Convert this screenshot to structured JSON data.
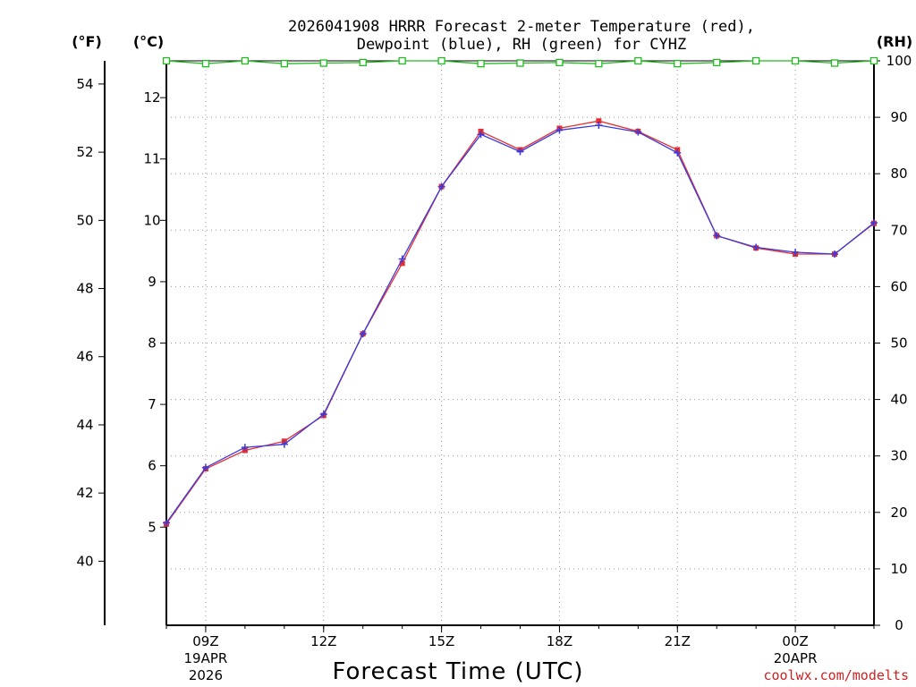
{
  "chart_data": {
    "type": "line",
    "title_line1": "2026041908 HRRR Forecast 2-meter Temperature (red),",
    "title_line2": "Dewpoint (blue), RH (green) for CYHZ",
    "xlabel": "Forecast Time (UTC)",
    "unit_left_f": "(°F)",
    "unit_left_c": "(°C)",
    "unit_right_rh": "(RH)",
    "watermark": "coolwx.com/modelts",
    "grid": true,
    "x_hours": [
      8,
      9,
      10,
      11,
      12,
      13,
      14,
      15,
      16,
      17,
      18,
      19,
      20,
      21,
      22,
      23,
      24,
      25,
      26
    ],
    "xlim": [
      8,
      26
    ],
    "x_ticks": [
      {
        "hour": 9,
        "lines": [
          "09Z",
          "19APR",
          "2026"
        ]
      },
      {
        "hour": 12,
        "lines": [
          "12Z"
        ]
      },
      {
        "hour": 15,
        "lines": [
          "15Z"
        ]
      },
      {
        "hour": 18,
        "lines": [
          "18Z"
        ]
      },
      {
        "hour": 21,
        "lines": [
          "21Z"
        ]
      },
      {
        "hour": 24,
        "lines": [
          "00Z",
          "20APR"
        ]
      }
    ],
    "celsius_axis": {
      "range": [
        3.4,
        12.6
      ],
      "ticks": [
        5,
        6,
        7,
        8,
        9,
        10,
        11,
        12
      ]
    },
    "fahrenheit_axis": {
      "ticks": [
        40,
        42,
        44,
        46,
        48,
        50,
        52,
        54
      ]
    },
    "rh_axis": {
      "range": [
        0,
        100
      ],
      "ticks": [
        0,
        10,
        20,
        30,
        40,
        50,
        60,
        70,
        80,
        90,
        100
      ]
    },
    "series": [
      {
        "name": "Temperature",
        "axis": "celsius",
        "color": "#e53030",
        "marker": "square",
        "values": [
          5.05,
          5.95,
          6.25,
          6.4,
          6.82,
          8.15,
          9.3,
          10.55,
          11.45,
          11.15,
          11.5,
          11.62,
          11.45,
          11.15,
          9.75,
          9.55,
          9.45,
          9.45,
          9.95
        ]
      },
      {
        "name": "Dewpoint",
        "axis": "celsius",
        "color": "#3a3adf",
        "marker": "plus",
        "values": [
          5.07,
          5.97,
          6.3,
          6.35,
          6.84,
          8.15,
          9.37,
          10.55,
          11.4,
          11.12,
          11.47,
          11.55,
          11.44,
          11.1,
          9.75,
          9.56,
          9.48,
          9.45,
          9.96
        ]
      },
      {
        "name": "RH",
        "axis": "rh",
        "color": "#22bb22",
        "marker": "open-square",
        "values": [
          100,
          99.5,
          100,
          99.5,
          99.6,
          99.7,
          100,
          100,
          99.5,
          99.6,
          99.7,
          99.5,
          100,
          99.5,
          99.7,
          100,
          100,
          99.6,
          100
        ]
      }
    ]
  }
}
